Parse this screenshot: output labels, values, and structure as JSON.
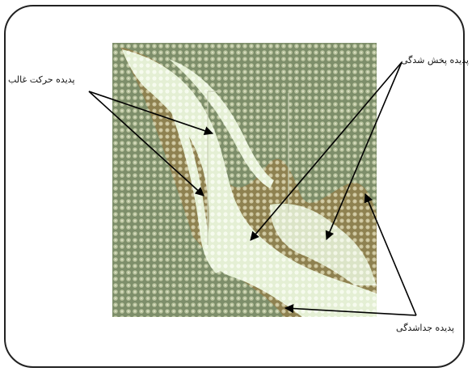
{
  "labels": {
    "dominant_path": "پدیده حرکت غالب",
    "spreading": "پدیده پخش شدگی",
    "detachment": "پدیده جداشدگی"
  },
  "colors": {
    "background": "#ffffff",
    "frame": "#222222",
    "grain_matrix": "#7d8e6a",
    "grain_dot": "#b9c39e",
    "fluid": "#eef6e2",
    "front_stain": "#a57c3c",
    "arrow": "#000000"
  }
}
